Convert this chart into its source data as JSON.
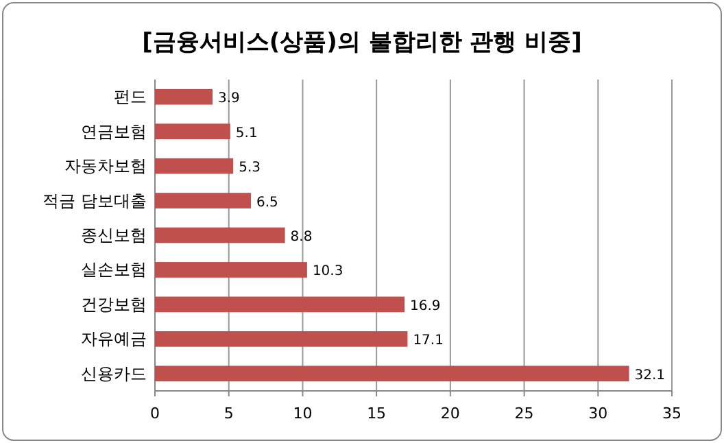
{
  "chart_data": {
    "type": "bar",
    "orientation": "horizontal",
    "title": "[금융서비스(상품)의 불합리한 관행 비중]",
    "categories": [
      "펀드",
      "연금보험",
      "자동차보험",
      "적금 담보대출",
      "종신보험",
      "실손보험",
      "건강보험",
      "자유예금",
      "신용카드"
    ],
    "values": [
      3.9,
      5.1,
      5.3,
      6.5,
      8.8,
      10.3,
      16.9,
      17.1,
      32.1
    ],
    "color": "#c0504d",
    "xlim": [
      0,
      35
    ],
    "xticks": [
      0,
      5,
      10,
      15,
      20,
      25,
      30,
      35
    ],
    "grid": "x",
    "data_labels": true
  }
}
